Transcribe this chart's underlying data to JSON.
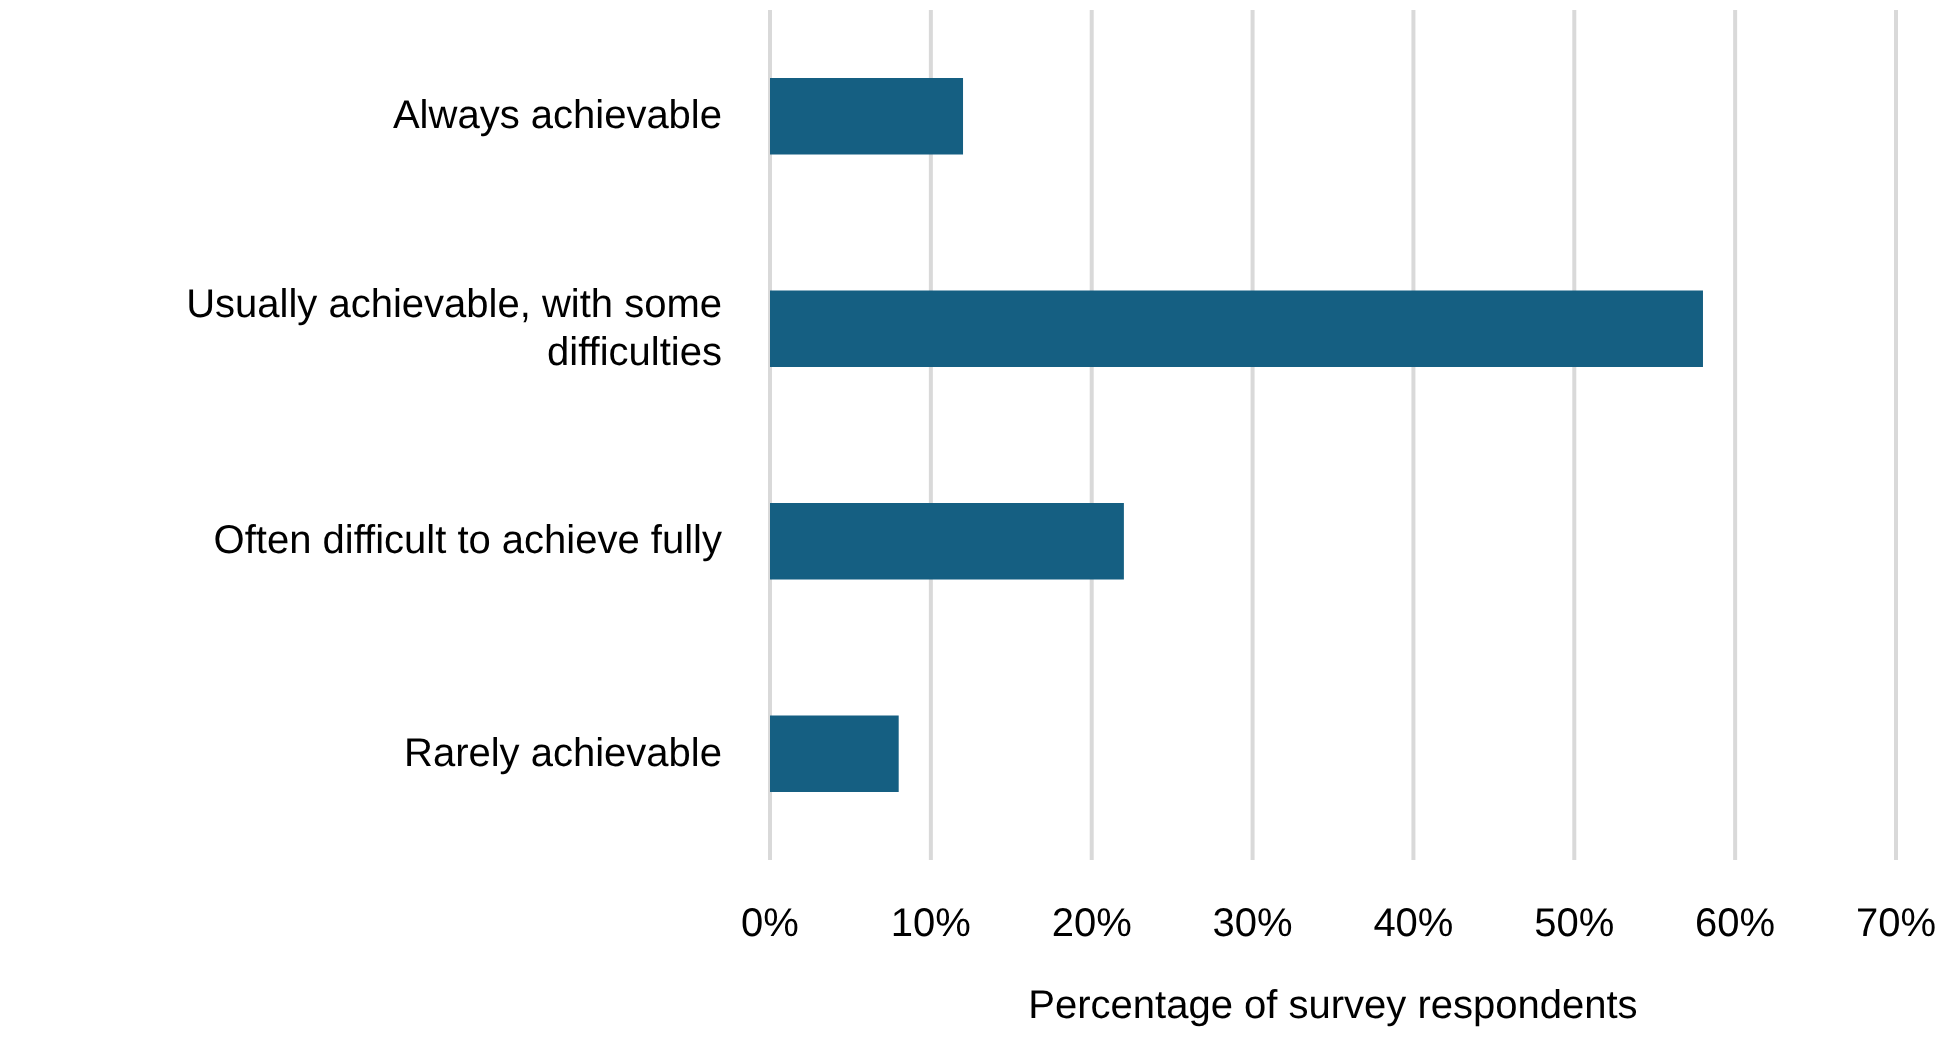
{
  "chart_data": {
    "type": "bar",
    "orientation": "horizontal",
    "categories": [
      "Always achievable",
      "Usually achievable, with some difficulties",
      "Often difficult to achieve fully",
      "Rarely achievable"
    ],
    "values": [
      12,
      58,
      22,
      8
    ],
    "color": "#155f82",
    "xlabel": "Percentage of survey respondents",
    "xlim": [
      0,
      70
    ],
    "xticks": [
      {
        "value": 0,
        "label": "0%"
      },
      {
        "value": 10,
        "label": "10%"
      },
      {
        "value": 20,
        "label": "20%"
      },
      {
        "value": 30,
        "label": "30%"
      },
      {
        "value": 40,
        "label": "40%"
      },
      {
        "value": 50,
        "label": "50%"
      },
      {
        "value": 60,
        "label": "60%"
      },
      {
        "value": 70,
        "label": "70%"
      }
    ],
    "grid": "x"
  }
}
